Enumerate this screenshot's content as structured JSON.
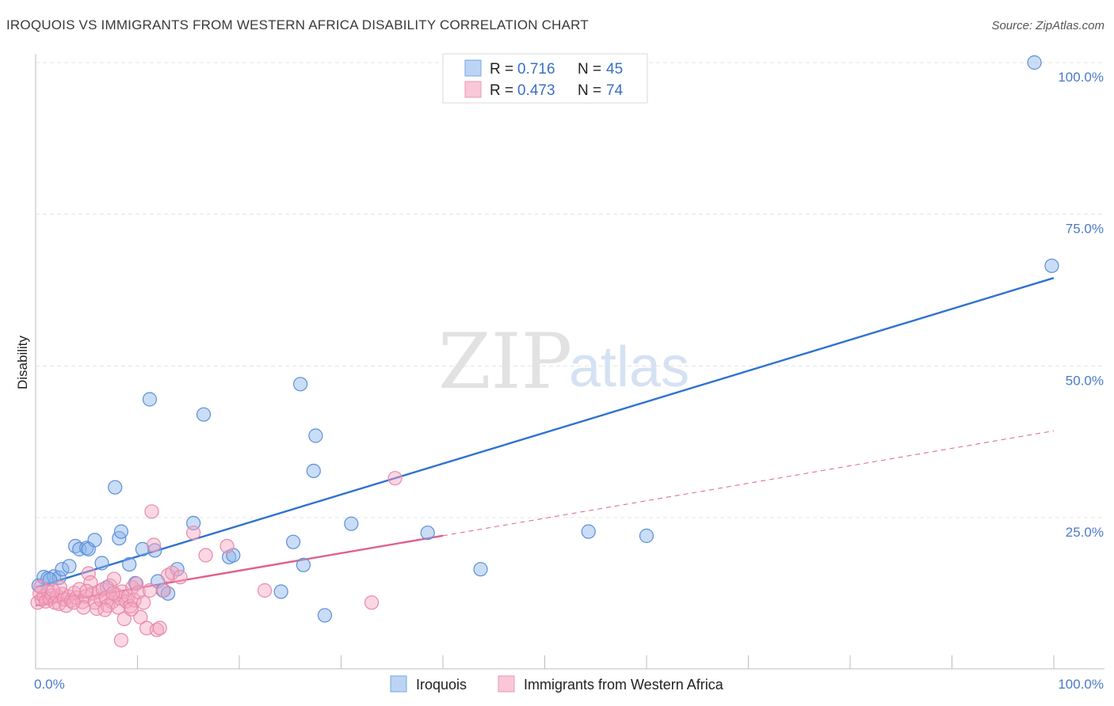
{
  "header": {
    "title": "IROQUOIS VS IMMIGRANTS FROM WESTERN AFRICA DISABILITY CORRELATION CHART",
    "source": "Source: ZipAtlas.com"
  },
  "watermark": {
    "part1": "ZIP",
    "part2": "atlas"
  },
  "legend": {
    "rows": [
      {
        "r_label": "R =",
        "r_value": "0.716",
        "n_label": "N =",
        "n_value": "45"
      },
      {
        "r_label": "R =",
        "r_value": "0.473",
        "n_label": "N =",
        "n_value": "74"
      }
    ]
  },
  "chart_data": {
    "type": "scatter",
    "title": "IROQUOIS VS IMMIGRANTS FROM WESTERN AFRICA DISABILITY CORRELATION CHART",
    "xlabel": "",
    "ylabel": "Disability",
    "xlim": [
      0,
      100
    ],
    "ylim": [
      0,
      105
    ],
    "x_tick_labels": [
      "0.0%",
      "100.0%"
    ],
    "y_ticks": [
      {
        "value": 25,
        "label": "25.0%"
      },
      {
        "value": 50,
        "label": "50.0%"
      },
      {
        "value": 75,
        "label": "75.0%"
      },
      {
        "value": 100,
        "label": "100.0%"
      }
    ],
    "grid": true,
    "legend_position": "top-center",
    "series": [
      {
        "name": "Iroquois",
        "color": "#8ab4ea",
        "stroke": "#5b8fd8",
        "line_color": "#2f72d0",
        "trend": {
          "x0": 0,
          "y0": 13.5,
          "x1": 100,
          "y1": 64.5,
          "dashed_from": null
        },
        "points": [
          [
            0.3,
            13.8
          ],
          [
            0.8,
            15.2
          ],
          [
            1.2,
            15.0
          ],
          [
            1.8,
            15.3
          ],
          [
            2.3,
            15.1
          ],
          [
            2.6,
            16.5
          ],
          [
            3.3,
            17.0
          ],
          [
            3.9,
            20.3
          ],
          [
            4.3,
            19.8
          ],
          [
            5.0,
            20.0
          ],
          [
            5.2,
            19.8
          ],
          [
            5.8,
            21.3
          ],
          [
            6.5,
            17.5
          ],
          [
            7.0,
            13.5
          ],
          [
            7.8,
            30.0
          ],
          [
            8.2,
            21.6
          ],
          [
            8.4,
            22.7
          ],
          [
            9.2,
            17.3
          ],
          [
            9.8,
            14.2
          ],
          [
            10.5,
            19.8
          ],
          [
            11.2,
            44.5
          ],
          [
            11.7,
            19.6
          ],
          [
            12.0,
            14.5
          ],
          [
            12.5,
            13.0
          ],
          [
            13.0,
            12.5
          ],
          [
            13.9,
            16.5
          ],
          [
            16.5,
            42.0
          ],
          [
            15.5,
            24.1
          ],
          [
            19.0,
            18.5
          ],
          [
            19.4,
            18.8
          ],
          [
            24.1,
            12.8
          ],
          [
            25.3,
            21.0
          ],
          [
            26.0,
            47.0
          ],
          [
            26.3,
            17.2
          ],
          [
            27.3,
            32.7
          ],
          [
            27.5,
            38.5
          ],
          [
            28.4,
            8.9
          ],
          [
            31.0,
            24.0
          ],
          [
            38.5,
            22.5
          ],
          [
            43.7,
            16.5
          ],
          [
            54.3,
            22.7
          ],
          [
            60.0,
            22.0
          ],
          [
            98.1,
            100.0
          ],
          [
            99.8,
            66.5
          ],
          [
            1.4,
            14.8
          ]
        ]
      },
      {
        "name": "Immigrants from Western Africa",
        "color": "#f4a7c0",
        "stroke": "#e88aa8",
        "line_color": "#e0608a",
        "trend": {
          "x0": 0,
          "y0": 10.5,
          "x1": 100,
          "y1": 39.3,
          "dashed_from": 40
        },
        "points": [
          [
            0.2,
            11.0
          ],
          [
            0.4,
            12.5
          ],
          [
            0.6,
            11.5
          ],
          [
            0.8,
            12.0
          ],
          [
            1.0,
            11.2
          ],
          [
            1.2,
            12.8
          ],
          [
            1.4,
            11.6
          ],
          [
            1.6,
            12.2
          ],
          [
            1.9,
            11.0
          ],
          [
            2.1,
            12.1
          ],
          [
            2.3,
            10.8
          ],
          [
            2.6,
            12.4
          ],
          [
            2.8,
            11.5
          ],
          [
            3.0,
            10.5
          ],
          [
            3.2,
            12.0
          ],
          [
            3.5,
            11.3
          ],
          [
            3.8,
            12.6
          ],
          [
            4.0,
            11.8
          ],
          [
            4.3,
            13.2
          ],
          [
            4.6,
            11.1
          ],
          [
            4.9,
            12.0
          ],
          [
            5.2,
            15.8
          ],
          [
            5.4,
            14.3
          ],
          [
            5.6,
            12.5
          ],
          [
            5.8,
            11.0
          ],
          [
            6.0,
            10.0
          ],
          [
            6.2,
            12.8
          ],
          [
            6.4,
            11.5
          ],
          [
            6.6,
            13.2
          ],
          [
            6.9,
            11.8
          ],
          [
            7.1,
            10.5
          ],
          [
            7.3,
            13.8
          ],
          [
            7.5,
            11.1
          ],
          [
            7.7,
            14.9
          ],
          [
            7.9,
            12.3
          ],
          [
            8.1,
            10.2
          ],
          [
            8.3,
            11.7
          ],
          [
            8.5,
            12.8
          ],
          [
            8.7,
            8.3
          ],
          [
            8.9,
            11.2
          ],
          [
            9.1,
            12.0
          ],
          [
            9.3,
            10.4
          ],
          [
            9.5,
            13.5
          ],
          [
            9.7,
            11.4
          ],
          [
            9.9,
            14.1
          ],
          [
            10.1,
            12.7
          ],
          [
            10.3,
            8.6
          ],
          [
            10.6,
            11.0
          ],
          [
            10.9,
            6.8
          ],
          [
            11.2,
            13.0
          ],
          [
            11.4,
            26.0
          ],
          [
            11.6,
            20.5
          ],
          [
            11.9,
            6.5
          ],
          [
            12.2,
            6.8
          ],
          [
            12.6,
            13.0
          ],
          [
            13.0,
            15.5
          ],
          [
            13.4,
            15.9
          ],
          [
            14.2,
            15.2
          ],
          [
            15.5,
            22.5
          ],
          [
            16.7,
            18.8
          ],
          [
            18.8,
            20.3
          ],
          [
            22.5,
            13.0
          ],
          [
            33.0,
            11.0
          ],
          [
            35.3,
            31.5
          ],
          [
            8.4,
            4.8
          ],
          [
            2.4,
            13.5
          ],
          [
            4.7,
            10.2
          ],
          [
            6.8,
            9.8
          ],
          [
            9.4,
            9.9
          ],
          [
            0.5,
            13.6
          ],
          [
            1.7,
            13.0
          ],
          [
            3.7,
            11.0
          ],
          [
            5.0,
            12.9
          ],
          [
            7.6,
            12.5
          ]
        ]
      }
    ]
  }
}
